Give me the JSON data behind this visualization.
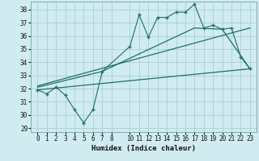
{
  "xlabel": "Humidex (Indice chaleur)",
  "bg_color": "#d0ecf0",
  "grid_color": "#aacdd6",
  "line_color": "#1e6e6e",
  "ylim": [
    28.7,
    38.6
  ],
  "xlim": [
    -0.7,
    23.7
  ],
  "yticks": [
    29,
    30,
    31,
    32,
    33,
    34,
    35,
    36,
    37,
    38
  ],
  "xticks": [
    0,
    1,
    2,
    3,
    4,
    5,
    6,
    7,
    8,
    10,
    11,
    12,
    13,
    14,
    15,
    16,
    17,
    18,
    19,
    20,
    21,
    22,
    23
  ],
  "series1_x": [
    0,
    1,
    2,
    3,
    4,
    5,
    6,
    7,
    10,
    11,
    12,
    13,
    14,
    15,
    16,
    17,
    18,
    19,
    20,
    21,
    22,
    23
  ],
  "series1_y": [
    31.9,
    31.6,
    32.1,
    31.5,
    30.4,
    29.4,
    30.4,
    33.3,
    35.2,
    37.6,
    35.9,
    37.4,
    37.4,
    37.8,
    37.8,
    38.4,
    36.6,
    36.8,
    36.5,
    36.6,
    34.4,
    33.5
  ],
  "series2_x": [
    0,
    23
  ],
  "series2_y": [
    31.9,
    33.5
  ],
  "series3_x": [
    0,
    23
  ],
  "series3_y": [
    32.2,
    36.6
  ],
  "series4_x": [
    0,
    7,
    10,
    17,
    20,
    23
  ],
  "series4_y": [
    32.1,
    33.3,
    34.3,
    36.6,
    36.5,
    33.5
  ]
}
